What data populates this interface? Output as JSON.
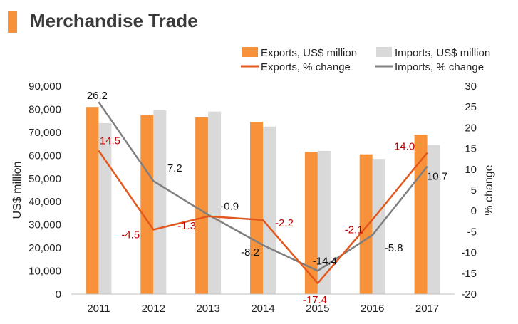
{
  "page": {
    "title": "Merchandise Trade"
  },
  "colors": {
    "exports_bar": "#f7923a",
    "imports_bar": "#d9d9d9",
    "exports_line": "#e2571e",
    "imports_line": "#7f7f7f",
    "export_label": "#c00000",
    "title_bar": "#f7923a"
  },
  "chart_data": {
    "type": "bar",
    "categories": [
      "2011",
      "2012",
      "2013",
      "2014",
      "2015",
      "2016",
      "2017"
    ],
    "series": [
      {
        "name": "Exports, US$ million",
        "type": "bar",
        "axis": "left",
        "values": [
          81000,
          77500,
          76500,
          74500,
          61500,
          60500,
          69000
        ]
      },
      {
        "name": "Imports, US$ million",
        "type": "bar",
        "axis": "left",
        "values": [
          74000,
          79500,
          79000,
          72500,
          62000,
          58500,
          64500
        ]
      },
      {
        "name": "Exports, % change",
        "type": "line",
        "axis": "right",
        "values": [
          14.5,
          -4.5,
          -1.3,
          -2.2,
          -17.4,
          -2.1,
          14.0
        ],
        "labels": [
          "14.5",
          "-4.5",
          "-1.3",
          "-2.2",
          "-17.4",
          "-2.1",
          "14.0"
        ]
      },
      {
        "name": "Imports, % change",
        "type": "line",
        "axis": "right",
        "values": [
          26.2,
          7.2,
          -0.9,
          -8.2,
          -14.4,
          -5.8,
          10.7
        ],
        "labels": [
          "26.2",
          "7.2",
          "-0.9",
          "-8.2",
          "-14.4",
          "-5.8",
          "10.7"
        ]
      }
    ],
    "ylabel": "US$ million",
    "y2label": "% change",
    "ylim": [
      0,
      90000
    ],
    "y2lim": [
      -20,
      30
    ],
    "yticks": [
      "90,000",
      "80,000",
      "70,000",
      "60,000",
      "50,000",
      "40,000",
      "30,000",
      "20,000",
      "10,000",
      "0"
    ],
    "y2ticks": [
      "30",
      "25",
      "20",
      "15",
      "10",
      "5",
      "0",
      "-5",
      "-10",
      "-15",
      "-20"
    ],
    "legend": "top-right",
    "grid": false
  }
}
